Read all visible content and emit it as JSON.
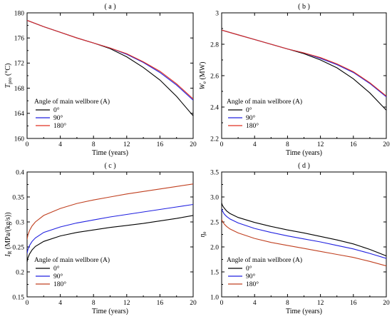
{
  "chart_data": [
    {
      "type": "line",
      "panel_label": "( a )",
      "xlabel": "Time (years)",
      "ylabel_main": "T",
      "ylabel_sub": "pro",
      "ylabel_unit": " (°C)",
      "xlim": [
        0,
        20
      ],
      "ylim": [
        160,
        180
      ],
      "xticks": [
        0,
        4,
        8,
        12,
        16,
        20
      ],
      "yticks": [
        160,
        164,
        168,
        172,
        176,
        180
      ],
      "legend_title": "Angle of main wellbore (A)",
      "x": [
        0,
        2,
        4,
        6,
        8,
        10,
        12,
        14,
        16,
        18,
        20
      ],
      "series": [
        {
          "name": "0°",
          "color": "#000000",
          "values": [
            178.8,
            177.8,
            176.9,
            176.0,
            175.2,
            174.3,
            173.0,
            171.3,
            169.3,
            166.7,
            163.6
          ]
        },
        {
          "name": "90°",
          "color": "#2020e0",
          "values": [
            178.8,
            177.8,
            176.9,
            176.0,
            175.2,
            174.4,
            173.4,
            172.1,
            170.5,
            168.5,
            166.1
          ]
        },
        {
          "name": "180°",
          "color": "#e03020",
          "values": [
            178.8,
            177.8,
            176.9,
            176.0,
            175.2,
            174.4,
            173.5,
            172.2,
            170.7,
            168.7,
            166.3
          ]
        }
      ]
    },
    {
      "type": "line",
      "panel_label": "( b )",
      "xlabel": "Time (years)",
      "ylabel_main": "W",
      "ylabel_sub": "e",
      "ylabel_unit": " (MW)",
      "xlim": [
        0,
        20
      ],
      "ylim": [
        2.2,
        3.0
      ],
      "xticks": [
        0,
        4,
        8,
        12,
        16,
        20
      ],
      "yticks": [
        2.2,
        2.4,
        2.6,
        2.8,
        3.0
      ],
      "ytick_labels": [
        "2.2",
        "2.4",
        "2.6",
        "2.8",
        "3"
      ],
      "legend_title": "Angle of main wellbore (A)",
      "x": [
        0,
        2,
        4,
        6,
        8,
        10,
        12,
        14,
        16,
        18,
        20
      ],
      "series": [
        {
          "name": "0°",
          "color": "#000000",
          "values": [
            2.89,
            2.86,
            2.83,
            2.8,
            2.77,
            2.74,
            2.7,
            2.65,
            2.58,
            2.49,
            2.38
          ]
        },
        {
          "name": "90°",
          "color": "#2020e0",
          "values": [
            2.89,
            2.86,
            2.83,
            2.8,
            2.77,
            2.745,
            2.71,
            2.67,
            2.62,
            2.55,
            2.465
          ]
        },
        {
          "name": "180°",
          "color": "#e03020",
          "values": [
            2.89,
            2.86,
            2.83,
            2.8,
            2.77,
            2.745,
            2.715,
            2.675,
            2.625,
            2.555,
            2.47
          ]
        }
      ]
    },
    {
      "type": "line",
      "panel_label": "( c )",
      "xlabel": "Time (years)",
      "ylabel_main": "I",
      "ylabel_sub": "R",
      "ylabel_unit": " (MPa/(kg/s))",
      "xlim": [
        0,
        20
      ],
      "ylim": [
        0.15,
        0.4
      ],
      "xticks": [
        0,
        4,
        8,
        12,
        16,
        20
      ],
      "yticks": [
        0.15,
        0.2,
        0.25,
        0.3,
        0.35,
        0.4
      ],
      "ytick_labels": [
        "0.15",
        "0.2",
        "0.25",
        "0.3",
        "0.35",
        "0.4"
      ],
      "legend_title": "Angle of main wellbore (A)",
      "x": [
        0,
        0.1,
        0.3,
        0.6,
        1,
        2,
        4,
        6,
        8,
        10,
        12,
        14,
        16,
        18,
        20
      ],
      "series": [
        {
          "name": "0°",
          "color": "#000000",
          "values": [
            0.22,
            0.228,
            0.236,
            0.244,
            0.251,
            0.261,
            0.272,
            0.279,
            0.284,
            0.289,
            0.293,
            0.297,
            0.302,
            0.307,
            0.313
          ]
        },
        {
          "name": "90°",
          "color": "#2020e0",
          "values": [
            0.237,
            0.245,
            0.253,
            0.261,
            0.268,
            0.279,
            0.29,
            0.298,
            0.304,
            0.31,
            0.315,
            0.32,
            0.325,
            0.33,
            0.335
          ]
        },
        {
          "name": "180°",
          "color": "#c04020",
          "values": [
            0.265,
            0.274,
            0.283,
            0.292,
            0.3,
            0.313,
            0.327,
            0.337,
            0.344,
            0.35,
            0.356,
            0.361,
            0.366,
            0.371,
            0.376
          ]
        }
      ]
    },
    {
      "type": "line",
      "panel_label": "( d )",
      "xlabel": "Time (years)",
      "ylabel_main": "η",
      "ylabel_sub": "e",
      "ylabel_unit": "",
      "xlim": [
        0,
        20
      ],
      "ylim": [
        1.0,
        3.5
      ],
      "xticks": [
        0,
        4,
        8,
        12,
        16,
        20
      ],
      "yticks": [
        1.0,
        1.5,
        2.0,
        2.5,
        3.0,
        3.5
      ],
      "ytick_labels": [
        "1.0",
        "1.5",
        "2.0",
        "2.5",
        "3.0",
        "3.5"
      ],
      "legend_title": "Angle of main wellbore (A)",
      "x": [
        0,
        0.1,
        0.3,
        0.6,
        1,
        2,
        4,
        6,
        8,
        10,
        12,
        14,
        16,
        18,
        20
      ],
      "series": [
        {
          "name": "0°",
          "color": "#000000",
          "values": [
            2.88,
            2.83,
            2.78,
            2.72,
            2.67,
            2.59,
            2.49,
            2.41,
            2.34,
            2.28,
            2.21,
            2.14,
            2.06,
            1.95,
            1.82
          ]
        },
        {
          "name": "90°",
          "color": "#2020e0",
          "values": [
            2.76,
            2.72,
            2.66,
            2.61,
            2.56,
            2.48,
            2.37,
            2.29,
            2.22,
            2.16,
            2.1,
            2.03,
            1.96,
            1.87,
            1.77
          ]
        },
        {
          "name": "180°",
          "color": "#c04020",
          "values": [
            2.55,
            2.51,
            2.46,
            2.41,
            2.36,
            2.28,
            2.17,
            2.09,
            2.03,
            1.97,
            1.91,
            1.85,
            1.79,
            1.71,
            1.62
          ]
        }
      ]
    }
  ]
}
